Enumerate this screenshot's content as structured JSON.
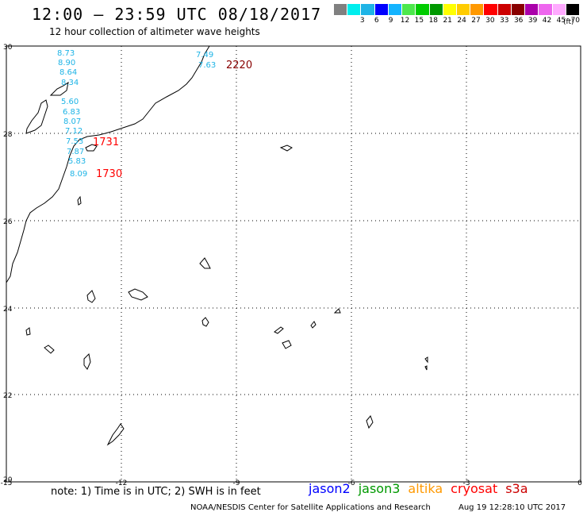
{
  "header": {
    "title": "12:00 – 23:59 UTC 08/18/2017",
    "subtitle": "12 hour collection of altimeter wave heights"
  },
  "legend": {
    "units": "(ft)",
    "swatches": [
      {
        "color": "#808080",
        "label": ""
      },
      {
        "color": "#00eeee",
        "label": "3"
      },
      {
        "color": "#1eb4e6",
        "label": "6"
      },
      {
        "color": "#0000ff",
        "label": "9"
      },
      {
        "color": "#14b4ff",
        "label": "12"
      },
      {
        "color": "#4ce84c",
        "label": "15"
      },
      {
        "color": "#00cc00",
        "label": "18"
      },
      {
        "color": "#009900",
        "label": "21"
      },
      {
        "color": "#ffff00",
        "label": "24"
      },
      {
        "color": "#ffcc00",
        "label": "27"
      },
      {
        "color": "#ff9900",
        "label": "30"
      },
      {
        "color": "#ff0000",
        "label": "33"
      },
      {
        "color": "#cc0000",
        "label": "36"
      },
      {
        "color": "#880000",
        "label": "39"
      },
      {
        "color": "#aa00aa",
        "label": "42"
      },
      {
        "color": "#ee66ee",
        "label": "45"
      },
      {
        "color": "#ffaaff",
        "label": "70"
      },
      {
        "color": "#000000",
        "label": ""
      }
    ]
  },
  "map": {
    "lon_ticks": [
      "-15",
      "-12",
      "-9",
      "-6",
      "-3",
      "0"
    ],
    "lat_ticks": [
      "30",
      "28",
      "26",
      "24",
      "22",
      "20"
    ],
    "observations": [
      "8.73",
      "8.90",
      "8.64",
      "8.34",
      "7.49",
      "7.63",
      "5.60",
      "6.83",
      "8.07",
      "7.12",
      "7.53",
      "7.87",
      "5.83",
      "8.09"
    ],
    "obs_color": "#1eb4e6",
    "timestamps": [
      {
        "text": "2220",
        "color": "#880000"
      },
      {
        "text": "1731",
        "color": "#ff0000"
      },
      {
        "text": "1730",
        "color": "#ff0000"
      }
    ]
  },
  "footer": {
    "note": "note:  1) Time is in UTC;  2) SWH is in feet",
    "satellites": [
      {
        "name": "jason2",
        "color": "#0000ff"
      },
      {
        "name": "jason3",
        "color": "#009900"
      },
      {
        "name": "altika",
        "color": "#ff9900"
      },
      {
        "name": "cryosat",
        "color": "#ff0000"
      },
      {
        "name": "s3a",
        "color": "#cc0000"
      }
    ],
    "credit": "NOAA/NESDIS Center for Satellite Applications and Research",
    "generated": "Aug 19 12:28:10 UTC 2017"
  }
}
